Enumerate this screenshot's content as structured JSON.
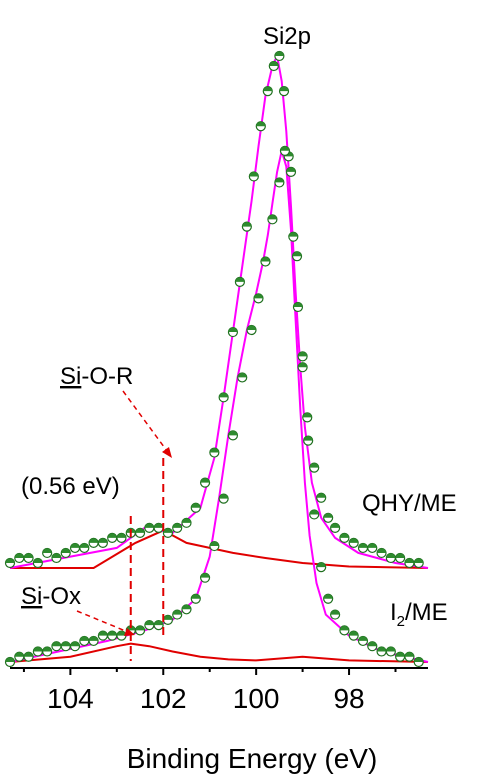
{
  "chart_data": {
    "type": "line",
    "title": "Si2p",
    "xlabel": "Binding Energy (eV)",
    "ylabel": "",
    "x_reversed": true,
    "xlim": [
      105.3,
      96.3
    ],
    "x_ticks": [
      104,
      102,
      100,
      98
    ],
    "x_tick_labels": [
      "104",
      "102",
      "100",
      "98"
    ],
    "grid": false,
    "series_labels": [
      {
        "key": "top",
        "text": "QHY/ME"
      },
      {
        "key": "bottom",
        "text": "I",
        "sub": "2",
        "rest": "/ME"
      }
    ],
    "annotations": {
      "si_o_r": {
        "under": "Si",
        "rest": "-O-R"
      },
      "si_ox": {
        "under": "Si",
        "rest": "-Ox"
      },
      "shift": "(0.56 eV)"
    },
    "markers_x": [
      102.7,
      102.0
    ],
    "curves": {
      "top_envelope": {
        "x": [
          105.3,
          103,
          102.4,
          101.8,
          101.2,
          100.9,
          100.7,
          100.5,
          100.3,
          100.1,
          99.95,
          99.8,
          99.65,
          99.55,
          99.45,
          99.35,
          99.25,
          99.15,
          99.05,
          98.95,
          98.8,
          98.6,
          98.3,
          97.8,
          97.0,
          96.3
        ],
        "y": [
          0.0,
          0.04,
          0.08,
          0.07,
          0.12,
          0.22,
          0.34,
          0.47,
          0.6,
          0.73,
          0.84,
          0.94,
          1.0,
          1.02,
          0.97,
          0.87,
          0.72,
          0.55,
          0.4,
          0.28,
          0.17,
          0.1,
          0.06,
          0.03,
          0.01,
          0.0
        ]
      },
      "top_sio_r": {
        "x": [
          105.3,
          103.5,
          102.6,
          102.0,
          101.5,
          101.0,
          100.5,
          99.8,
          99.0,
          98.0,
          96.3
        ],
        "y": [
          0.0,
          0.0,
          0.05,
          0.075,
          0.05,
          0.04,
          0.03,
          0.02,
          0.01,
          0.003,
          0.0
        ]
      },
      "bottom_envelope": {
        "x": [
          105.3,
          103.2,
          102.4,
          101.8,
          101.3,
          101.0,
          100.8,
          100.6,
          100.4,
          100.2,
          100.0,
          99.85,
          99.75,
          99.65,
          99.55,
          99.45,
          99.35,
          99.25,
          99.15,
          99.05,
          98.95,
          98.85,
          98.7,
          98.5,
          98.0,
          97.3,
          96.3
        ],
        "y": [
          0.0,
          0.04,
          0.06,
          0.08,
          0.12,
          0.2,
          0.31,
          0.43,
          0.54,
          0.63,
          0.7,
          0.76,
          0.81,
          0.87,
          0.93,
          0.97,
          0.94,
          0.82,
          0.65,
          0.48,
          0.34,
          0.24,
          0.15,
          0.09,
          0.05,
          0.02,
          0.0
        ]
      },
      "bottom_siox": {
        "x": [
          105.3,
          104.0,
          103.0,
          102.7,
          102.3,
          101.8,
          101.2,
          100.6,
          100.0,
          99.0,
          98.0,
          96.3
        ],
        "y": [
          0.0,
          0.01,
          0.03,
          0.035,
          0.03,
          0.02,
          0.01,
          0.005,
          0.003,
          0.01,
          0.003,
          0.0
        ]
      }
    },
    "dots": {
      "top": {
        "x": [
          105.3,
          105.1,
          104.9,
          104.7,
          104.5,
          104.3,
          104.1,
          103.9,
          103.7,
          103.5,
          103.3,
          103.1,
          102.9,
          102.7,
          102.5,
          102.3,
          102.1,
          101.9,
          101.7,
          101.5,
          101.3,
          101.1,
          100.9,
          100.7,
          100.5,
          100.35,
          100.2,
          100.05,
          99.9,
          99.75,
          99.62,
          99.5,
          99.4,
          99.3,
          99.2,
          99.1,
          99.0,
          98.9,
          98.75,
          98.6,
          98.45,
          98.3,
          98.1,
          97.9,
          97.7,
          97.5,
          97.3,
          97.1,
          96.9,
          96.7,
          96.5
        ],
        "y": [
          0.01,
          0.02,
          0.02,
          0.01,
          0.03,
          0.02,
          0.03,
          0.04,
          0.04,
          0.05,
          0.05,
          0.06,
          0.06,
          0.07,
          0.07,
          0.08,
          0.08,
          0.07,
          0.08,
          0.09,
          0.12,
          0.17,
          0.23,
          0.34,
          0.47,
          0.57,
          0.68,
          0.78,
          0.88,
          0.95,
          1.0,
          1.02,
          0.95,
          0.82,
          0.66,
          0.52,
          0.4,
          0.3,
          0.2,
          0.14,
          0.1,
          0.08,
          0.06,
          0.05,
          0.04,
          0.04,
          0.03,
          0.02,
          0.02,
          0.01,
          0.01
        ]
      },
      "bottom": {
        "x": [
          105.3,
          105.1,
          104.9,
          104.7,
          104.5,
          104.3,
          104.1,
          103.9,
          103.7,
          103.5,
          103.3,
          103.1,
          102.9,
          102.7,
          102.5,
          102.3,
          102.1,
          101.9,
          101.7,
          101.5,
          101.3,
          101.1,
          100.9,
          100.7,
          100.5,
          100.3,
          100.1,
          99.95,
          99.8,
          99.65,
          99.5,
          99.38,
          99.25,
          99.12,
          99.0,
          98.88,
          98.75,
          98.6,
          98.45,
          98.3,
          98.1,
          97.9,
          97.7,
          97.5,
          97.3,
          97.1,
          96.9,
          96.7,
          96.5
        ],
        "y": [
          0.0,
          0.01,
          0.01,
          0.02,
          0.02,
          0.03,
          0.03,
          0.03,
          0.04,
          0.04,
          0.05,
          0.05,
          0.05,
          0.06,
          0.06,
          0.07,
          0.07,
          0.08,
          0.09,
          0.1,
          0.12,
          0.16,
          0.22,
          0.31,
          0.43,
          0.54,
          0.63,
          0.69,
          0.76,
          0.84,
          0.91,
          0.97,
          0.93,
          0.77,
          0.58,
          0.42,
          0.28,
          0.18,
          0.12,
          0.09,
          0.06,
          0.05,
          0.04,
          0.03,
          0.02,
          0.02,
          0.01,
          0.01,
          0.0
        ]
      }
    },
    "colors": {
      "envelope": "#ff00ff",
      "component": "#e00000",
      "marker_line": "#e00000",
      "dot_fill": "#2e8b2e",
      "dot_edge": "#1f6f1f",
      "axis": "#000000",
      "fit_thin": "#3333cc"
    }
  }
}
